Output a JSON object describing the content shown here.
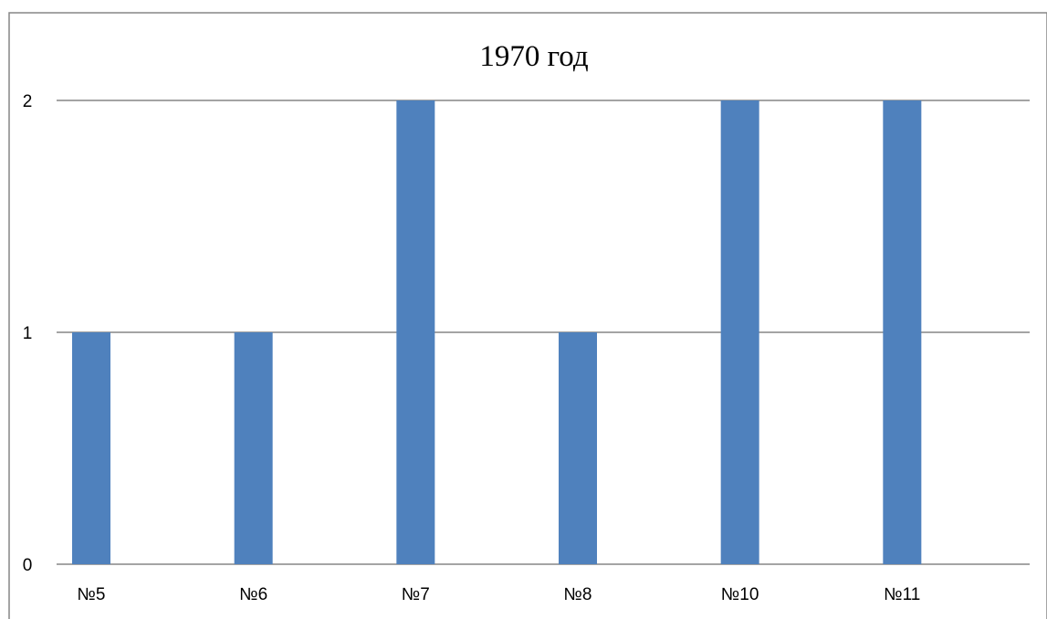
{
  "chart_data": {
    "type": "bar",
    "title": "1970 год",
    "categories": [
      "№5",
      "№6",
      "№7",
      "№8",
      "№10",
      "№11"
    ],
    "values": [
      1,
      1,
      2,
      1,
      2,
      2
    ],
    "xlabel": "",
    "ylabel": "",
    "ylim": [
      0,
      2
    ],
    "yticks": [
      0,
      1,
      2
    ],
    "grid": true,
    "legend": "none",
    "bar_color": "#4F81BD",
    "grid_color": "#868686"
  }
}
